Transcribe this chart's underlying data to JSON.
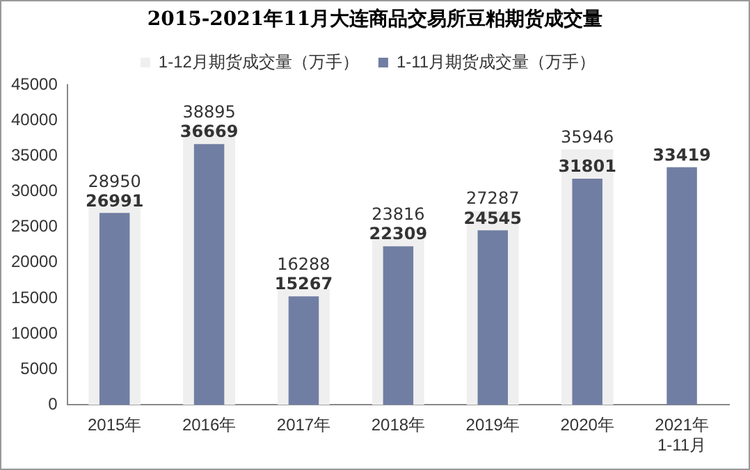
{
  "chart_data": {
    "type": "bar",
    "title": "2015-2021年11月大连商品交易所豆粕期货成交量",
    "categories": [
      "2015年",
      "2016年",
      "2017年",
      "2018年",
      "2019年",
      "2020年",
      "2021年\n1-11月"
    ],
    "series": [
      {
        "name": "1-12月期货成交量（万手）",
        "color": "#efefef",
        "values": [
          28950,
          38895,
          16288,
          23816,
          27287,
          35946,
          null
        ]
      },
      {
        "name": "1-11月期货成交量（万手）",
        "color": "#717ea3",
        "values": [
          26991,
          36669,
          15267,
          22309,
          24545,
          31801,
          33419
        ]
      }
    ],
    "ylim": [
      0,
      45000
    ],
    "yticks": [
      0,
      5000,
      10000,
      15000,
      20000,
      25000,
      30000,
      35000,
      40000,
      45000
    ],
    "grid": false,
    "legend": "top",
    "data_labels": true
  }
}
